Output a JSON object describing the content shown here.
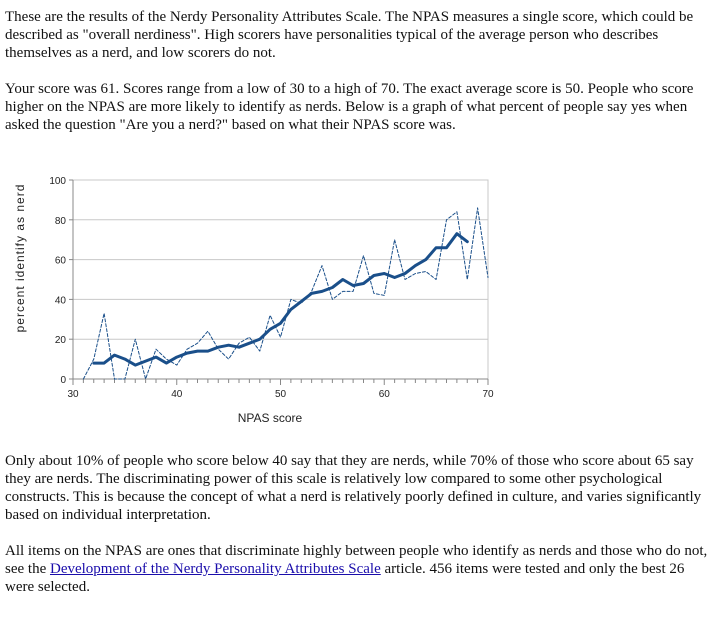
{
  "intro": "These are the results of the Nerdy Personality Attributes Scale. The NPAS measures a single score, which could be described as \"overall nerdiness\". High scorers have personalities typical of the average person who describes themselves as a nerd, and low scorers do not.",
  "score_text": "Your score was 61. Scores range from a low of 30 to a high of 70. The exact average score is 50. People who score higher on the NPAS are more likely to identify as nerds. Below is a graph of what percent of people say yes when asked the question \"Are you a nerd?\" based on what their NPAS score was.",
  "discussion": "Only about 10% of people who score below 40 say that they are nerds, while 70% of those who score about 65 say they are nerds. The discriminating power of this scale is relatively low compared to some other psychological constructs. This is because the concept of what a nerd is relatively poorly defined in culture, and varies significantly based on individual interpretation.",
  "closing": {
    "before_link": "All items on the NPAS are ones that discriminate highly between people who identify as nerds and those who do not, see the ",
    "link_text": "Development of the Nerdy Personality Attributes Scale",
    "after_link": " article. 456 items were tested and only the best 26 were selected."
  },
  "chart_data": {
    "type": "line",
    "title": "",
    "xlabel": "NPAS score",
    "ylabel": "percent identify as nerd",
    "xlim": [
      30,
      70
    ],
    "ylim": [
      0,
      100
    ],
    "xticks": [
      30,
      40,
      50,
      60,
      70
    ],
    "yticks": [
      0,
      20,
      40,
      60,
      80,
      100
    ],
    "grid": "horizontal",
    "colors": {
      "line": "#1a4f8a",
      "grid": "#c8c8c8",
      "axis": "#888888"
    },
    "series": [
      {
        "style": "dashed-raw",
        "x": [
          31,
          32,
          33,
          34,
          35,
          36,
          37,
          38,
          39,
          40,
          41,
          42,
          43,
          44,
          45,
          46,
          47,
          48,
          49,
          50,
          51,
          52,
          53,
          54,
          55,
          56,
          57,
          58,
          59,
          60,
          61,
          62,
          63,
          64,
          65,
          66,
          67,
          68,
          69,
          70
        ],
        "y": [
          0,
          10,
          33,
          0,
          0,
          20,
          0,
          15,
          10,
          7,
          15,
          18,
          24,
          15,
          10,
          18,
          21,
          14,
          32,
          21,
          40,
          38,
          44,
          57,
          40,
          44,
          44,
          62,
          43,
          42,
          70,
          50,
          53,
          54,
          50,
          80,
          84,
          50,
          86,
          51
        ]
      },
      {
        "style": "solid-smoothed",
        "x": [
          32,
          33,
          34,
          35,
          36,
          37,
          38,
          39,
          40,
          41,
          42,
          43,
          44,
          45,
          46,
          47,
          48,
          49,
          50,
          51,
          52,
          53,
          54,
          55,
          56,
          57,
          58,
          59,
          60,
          61,
          62,
          63,
          64,
          65,
          66,
          67,
          68
        ],
        "y": [
          8,
          8,
          12,
          10,
          7,
          9,
          11,
          8,
          11,
          13,
          14,
          14,
          16,
          17,
          16,
          18,
          20,
          25,
          28,
          35,
          39,
          43,
          44,
          46,
          50,
          47,
          48,
          52,
          53,
          51,
          53,
          57,
          60,
          66,
          66,
          73,
          69
        ]
      }
    ]
  }
}
